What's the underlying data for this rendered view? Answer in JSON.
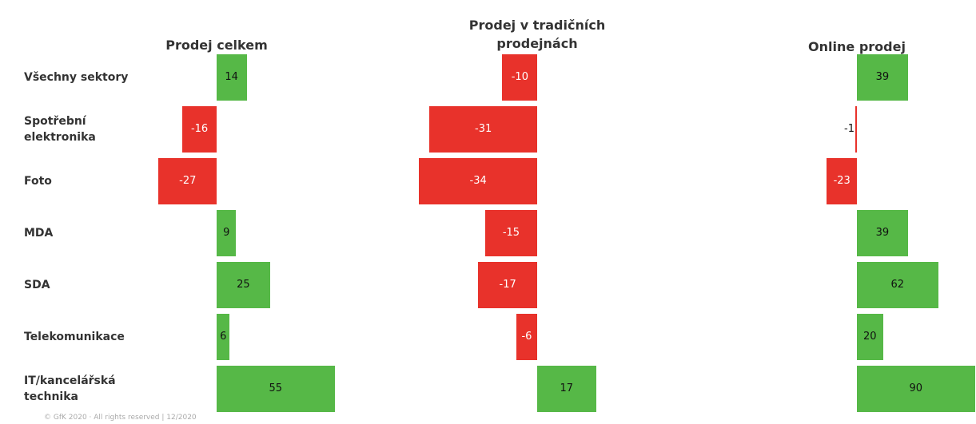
{
  "chart_data": {
    "type": "bar",
    "orientation": "horizontal",
    "categories": [
      "Všechny sektory",
      "Spotřební elektronika",
      "Foto",
      "MDA",
      "SDA",
      "Telekomunikace",
      "IT/kancelářská technika"
    ],
    "series": [
      {
        "name": "Prodej celkem",
        "values": [
          14,
          -16,
          -27,
          9,
          25,
          6,
          55
        ]
      },
      {
        "name": "Prodej v tradičních prodejnách",
        "values": [
          -10,
          -31,
          -34,
          -15,
          -17,
          -6,
          17
        ]
      },
      {
        "name": "Online prodej",
        "values": [
          39,
          -1,
          -23,
          39,
          62,
          20,
          90
        ]
      }
    ],
    "positive_color": "#56b847",
    "negative_color": "#e8322b",
    "footer": "© GfK 2020 · All rights reserved | 12/2020"
  }
}
